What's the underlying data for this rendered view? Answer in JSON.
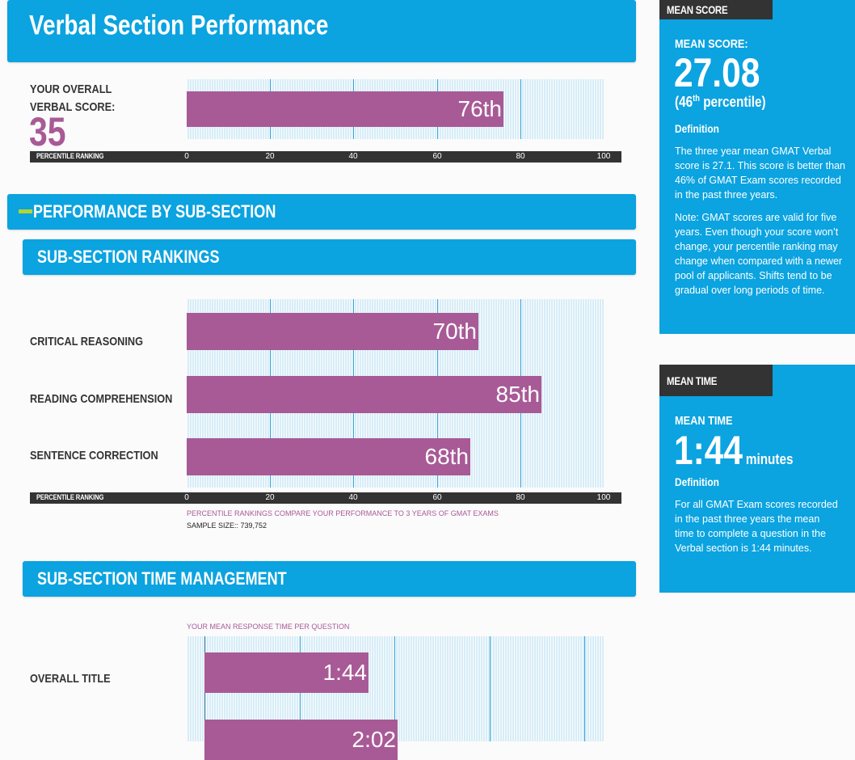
{
  "page": {
    "title": "Verbal Section Performance",
    "overall_label": "YOUR OVERALL VERBAL SCORE:",
    "overall_score": "35",
    "axis_title": "PERCENTILE RANKING",
    "subsection_header": "PERFORMANCE BY SUB-SECTION",
    "rankings_header": "SUB-SECTION RANKINGS",
    "rankings_note": "PERCENTILE RANKINGS COMPARE YOUR PERFORMANCE TO 3 YEARS OF GMAT EXAMS",
    "sample_size": "SAMPLE SIZE:: 739,752",
    "time_header": "SUB-SECTION TIME MANAGEMENT",
    "time_chart_label": "YOUR MEAN RESPONSE TIME PER QUESTION"
  },
  "sidebar": {
    "mean_score": {
      "tab": "MEAN SCORE",
      "label": "MEAN SCORE:",
      "value": "27.08",
      "percentile_open": "(46",
      "percentile_sup": "th",
      "percentile_close": " percentile)",
      "definition_label": "Definition",
      "definition": "The three year mean GMAT Verbal score is 27.1. This score is better than 46% of GMAT Exam scores recorded in the past three years.",
      "note": "Note: GMAT scores are valid for five years. Even though your score won’t change, your percentile ranking may change when compared with a newer pool of applicants. Shifts tend to be gradual over long periods of time."
    },
    "mean_time": {
      "tab": "MEAN TIME",
      "label": "MEAN TIME",
      "value": "1:44",
      "unit": "minutes",
      "definition_label": "Definition",
      "definition": "For all GMAT Exam scores recorded in the past three years the mean time to complete a question in the Verbal section is 1:44 minutes."
    }
  },
  "chart_data": [
    {
      "type": "bar",
      "orientation": "horizontal",
      "xlabel": "PERCENTILE RANKING",
      "xlim": [
        0,
        100
      ],
      "ticks": [
        0,
        20,
        40,
        60,
        80,
        100
      ],
      "categories": [
        ""
      ],
      "values": [
        76
      ],
      "labels": [
        "76th"
      ]
    },
    {
      "type": "bar",
      "orientation": "horizontal",
      "xlabel": "PERCENTILE RANKING",
      "xlim": [
        0,
        100
      ],
      "ticks": [
        0,
        20,
        40,
        60,
        80,
        100
      ],
      "categories": [
        "CRITICAL REASONING",
        "READING COMPREHENSION",
        "SENTENCE CORRECTION"
      ],
      "values": [
        70,
        85,
        68
      ],
      "labels": [
        "70th",
        "85th",
        "68th"
      ]
    },
    {
      "type": "bar",
      "orientation": "horizontal",
      "title": "YOUR MEAN RESPONSE TIME PER QUESTION",
      "xlim": [
        0,
        4.2
      ],
      "gridlines": [
        0,
        1,
        2,
        3,
        4
      ],
      "categories": [
        "OVERALL TITLE"
      ],
      "values": [
        1.73,
        2.03
      ],
      "labels": [
        "1:44",
        "2:02"
      ]
    }
  ],
  "colors": {
    "accent_blue": "#0ba3e0",
    "bar_purple": "#a85a96",
    "dark": "#333333",
    "chart_bg": "#d7edf7",
    "minus_green": "#b5d334"
  }
}
